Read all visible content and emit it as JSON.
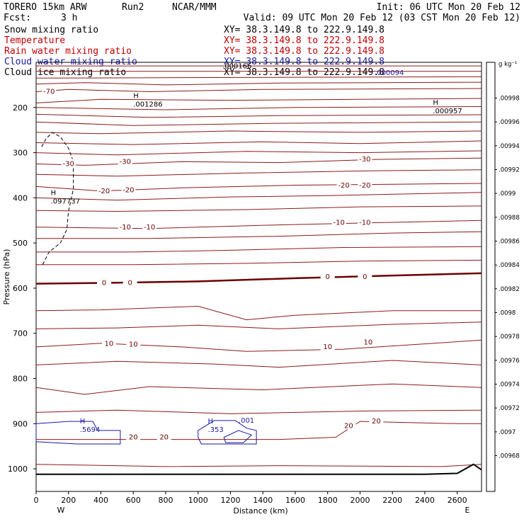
{
  "header": {
    "model": "TORERO  15km ARW",
    "run": "Run2",
    "org": "NCAR/MMM",
    "init": "Init: 06 UTC Mon 20 Feb 12",
    "fcst_label": "Fcst:",
    "fcst_value": "3 h",
    "valid": "Valid: 09 UTC Mon 20 Feb 12 (03 CST Mon 20 Feb 12)"
  },
  "fields": [
    {
      "name": "Snow mixing ratio",
      "xy": "XY=  38.3.149.8 to 222.9.149.8",
      "color": "#000000"
    },
    {
      "name": "Temperature",
      "xy": "XY=  38.3.149.8 to 222.9.149.8",
      "color": "#c00000"
    },
    {
      "name": "Rain water mixing ratio",
      "xy": "XY=  38.3.149.8 to 222.9.149.8",
      "color": "#c00000"
    },
    {
      "name": "Cloud water mixing ratio",
      "xy": "XY=  38.3.149.8 to 222.9.149.8",
      "color": "#1a1aa6"
    },
    {
      "name": "Cloud ice mixing ratio",
      "xy": "XY=  38.3.149.8 to 222.9.149.8",
      "color": "#000000"
    }
  ],
  "chart_data": {
    "type": "contour-cross-section",
    "xlabel": "Distance (km)",
    "ylabel": "Pressure (hPa)",
    "x_ticks": [
      0,
      200,
      400,
      600,
      800,
      1000,
      1200,
      1400,
      1600,
      1800,
      2000,
      2200,
      2400,
      2600
    ],
    "y_ticks": [
      200,
      300,
      400,
      500,
      600,
      700,
      800,
      900,
      1000
    ],
    "xlim": [
      0,
      2750
    ],
    "ylim": [
      1050,
      100
    ],
    "y_scale": "linear",
    "left_end_label": "W",
    "right_end_label": "E",
    "colorbar": {
      "unit": "g kg⁻¹",
      "ticks": [
        ".00998",
        ".00996",
        ".00994",
        ".00992",
        ".0099",
        ".00988",
        ".00986",
        ".00984",
        ".00982",
        ".0098",
        ".00978",
        ".00976",
        ".00974",
        ".00972",
        ".0097",
        ".00968"
      ]
    },
    "temperature_labels": [
      {
        "text": "-70",
        "x": 80,
        "p": 165
      },
      {
        "text": "-30",
        "x": 200,
        "p": 325
      },
      {
        "text": "-30",
        "x": 550,
        "p": 320
      },
      {
        "text": "-30",
        "x": 2030,
        "p": 315
      },
      {
        "text": "-20",
        "x": 420,
        "p": 385
      },
      {
        "text": "-20",
        "x": 570,
        "p": 383
      },
      {
        "text": "-20",
        "x": 1900,
        "p": 373
      },
      {
        "text": "-20",
        "x": 2030,
        "p": 373
      },
      {
        "text": "-10",
        "x": 550,
        "p": 465
      },
      {
        "text": "-10",
        "x": 700,
        "p": 465
      },
      {
        "text": "-10",
        "x": 1870,
        "p": 455
      },
      {
        "text": "-10",
        "x": 2030,
        "p": 455
      },
      {
        "text": "0",
        "x": 420,
        "p": 588
      },
      {
        "text": "0",
        "x": 580,
        "p": 588
      },
      {
        "text": "0",
        "x": 1800,
        "p": 575
      },
      {
        "text": "0",
        "x": 2030,
        "p": 575
      },
      {
        "text": "10",
        "x": 450,
        "p": 723
      },
      {
        "text": "10",
        "x": 600,
        "p": 725
      },
      {
        "text": "10",
        "x": 1800,
        "p": 730
      },
      {
        "text": "10",
        "x": 2050,
        "p": 720
      },
      {
        "text": "20",
        "x": 600,
        "p": 930
      },
      {
        "text": "20",
        "x": 790,
        "p": 930
      },
      {
        "text": "20",
        "x": 1930,
        "p": 905
      },
      {
        "text": "20",
        "x": 2100,
        "p": 895
      }
    ],
    "annotations": [
      {
        "text": "H",
        "value": ".001286",
        "x": 600,
        "p": 195,
        "color": "#000000"
      },
      {
        "text": "H",
        "value": ".000957",
        "x": 2450,
        "p": 210,
        "color": "#000000"
      },
      {
        "text": "H",
        "value": ".097737",
        "x": 90,
        "p": 410,
        "color": "#000000"
      },
      {
        "text": "",
        "value": ".000166",
        "x": 1150,
        "p": 110,
        "color": "#000000"
      },
      {
        "text": "",
        "value": ".000094",
        "x": 2090,
        "p": 125,
        "color": "#1a1aa6"
      },
      {
        "text": "H",
        "value": ".5694",
        "x": 270,
        "p": 915,
        "color": "#1a1aa6"
      },
      {
        "text": "H",
        "value": ".353",
        "x": 1060,
        "p": 915,
        "color": "#1a1aa6"
      },
      {
        "text": "",
        "value": ".001",
        "x": 1250,
        "p": 895,
        "color": "#1a1aa6"
      }
    ]
  }
}
